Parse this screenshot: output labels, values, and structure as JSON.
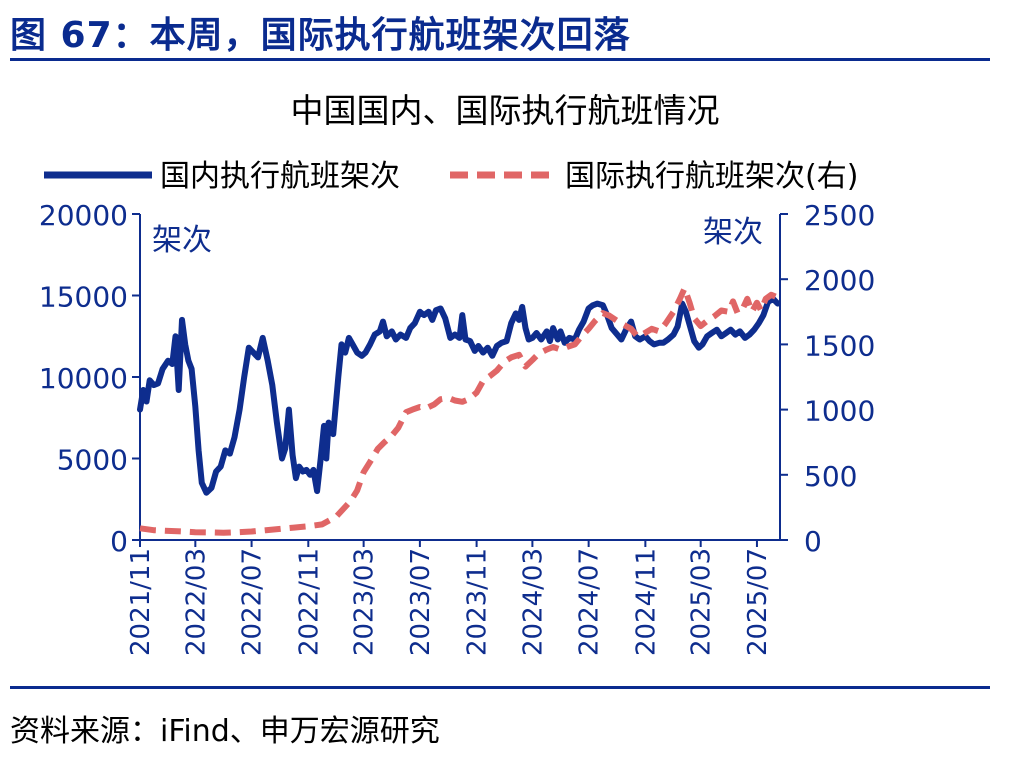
{
  "figure": {
    "title": "图 67：本周，国际执行航班架次回落",
    "source": "资料来源：iFind、申万宏源研究"
  },
  "colors": {
    "brand": "#0a2b8f",
    "domestic_line": "#0e2d8e",
    "international_line": "#e06666",
    "axis": "#0e2d8e"
  },
  "chart_data": {
    "type": "line",
    "title": "中国国内、国际执行航班情况",
    "xlabel": "",
    "ylabel": "架次",
    "y2label": "架次",
    "legend_position": "top",
    "grid": false,
    "x_ticks": [
      "2021/11",
      "2022/03",
      "2022/07",
      "2022/11",
      "2023/03",
      "2023/07",
      "2023/11",
      "2024/03",
      "2024/07",
      "2024/11",
      "2025/03",
      "2025/07"
    ],
    "x_range": [
      "2021-11-01",
      "2025-08-20"
    ],
    "y_left": {
      "min": 0,
      "max": 20000,
      "ticks": [
        0,
        5000,
        10000,
        15000,
        20000
      ]
    },
    "y_right": {
      "min": 0,
      "max": 2500,
      "ticks": [
        0,
        500,
        1000,
        1500,
        2000,
        2500
      ]
    },
    "series": [
      {
        "name": "国内执行航班架次",
        "axis": "left",
        "style": "solid",
        "points": [
          [
            "2021-11-01",
            8000
          ],
          [
            "2021-11-08",
            9200
          ],
          [
            "2021-11-15",
            8500
          ],
          [
            "2021-11-22",
            9800
          ],
          [
            "2021-12-01",
            9500
          ],
          [
            "2021-12-10",
            9600
          ],
          [
            "2021-12-20",
            10500
          ],
          [
            "2022-01-01",
            11000
          ],
          [
            "2022-01-10",
            10800
          ],
          [
            "2022-01-17",
            12500
          ],
          [
            "2022-01-24",
            9200
          ],
          [
            "2022-01-31",
            13500
          ],
          [
            "2022-02-07",
            12000
          ],
          [
            "2022-02-14",
            11000
          ],
          [
            "2022-02-21",
            10500
          ],
          [
            "2022-03-01",
            8200
          ],
          [
            "2022-03-08",
            5500
          ],
          [
            "2022-03-15",
            3500
          ],
          [
            "2022-03-25",
            2900
          ],
          [
            "2022-04-05",
            3200
          ],
          [
            "2022-04-15",
            4200
          ],
          [
            "2022-04-25",
            4500
          ],
          [
            "2022-05-05",
            5500
          ],
          [
            "2022-05-15",
            5300
          ],
          [
            "2022-05-25",
            6300
          ],
          [
            "2022-06-05",
            8000
          ],
          [
            "2022-06-15",
            10000
          ],
          [
            "2022-06-25",
            11800
          ],
          [
            "2022-07-05",
            11500
          ],
          [
            "2022-07-15",
            11200
          ],
          [
            "2022-07-25",
            12400
          ],
          [
            "2022-08-05",
            11000
          ],
          [
            "2022-08-15",
            9500
          ],
          [
            "2022-08-25",
            7200
          ],
          [
            "2022-09-05",
            5000
          ],
          [
            "2022-09-12",
            5600
          ],
          [
            "2022-09-20",
            8000
          ],
          [
            "2022-09-28",
            5200
          ],
          [
            "2022-10-05",
            3800
          ],
          [
            "2022-10-12",
            4500
          ],
          [
            "2022-10-20",
            4200
          ],
          [
            "2022-10-28",
            4300
          ],
          [
            "2022-11-05",
            4000
          ],
          [
            "2022-11-12",
            4300
          ],
          [
            "2022-11-20",
            3000
          ],
          [
            "2022-11-28",
            5000
          ],
          [
            "2022-12-05",
            7000
          ],
          [
            "2022-12-10",
            5000
          ],
          [
            "2022-12-15",
            7200
          ],
          [
            "2022-12-25",
            6500
          ],
          [
            "2023-01-05",
            10000
          ],
          [
            "2023-01-12",
            12000
          ],
          [
            "2023-01-20",
            11500
          ],
          [
            "2023-01-28",
            12400
          ],
          [
            "2023-02-05",
            12000
          ],
          [
            "2023-02-15",
            11500
          ],
          [
            "2023-02-25",
            11300
          ],
          [
            "2023-03-05",
            11500
          ],
          [
            "2023-03-15",
            12000
          ],
          [
            "2023-03-25",
            12600
          ],
          [
            "2023-04-05",
            12800
          ],
          [
            "2023-04-12",
            13400
          ],
          [
            "2023-04-20",
            12500
          ],
          [
            "2023-05-01",
            12800
          ],
          [
            "2023-05-10",
            12300
          ],
          [
            "2023-05-20",
            12600
          ],
          [
            "2023-06-01",
            12400
          ],
          [
            "2023-06-10",
            13000
          ],
          [
            "2023-06-20",
            13300
          ],
          [
            "2023-07-01",
            14000
          ],
          [
            "2023-07-10",
            13800
          ],
          [
            "2023-07-20",
            14000
          ],
          [
            "2023-07-28",
            13500
          ],
          [
            "2023-08-05",
            14100
          ],
          [
            "2023-08-15",
            14200
          ],
          [
            "2023-08-25",
            13600
          ],
          [
            "2023-09-05",
            12400
          ],
          [
            "2023-09-15",
            12600
          ],
          [
            "2023-09-25",
            12400
          ],
          [
            "2023-10-01",
            13800
          ],
          [
            "2023-10-08",
            12300
          ],
          [
            "2023-10-18",
            12200
          ],
          [
            "2023-10-28",
            11600
          ],
          [
            "2023-11-05",
            11900
          ],
          [
            "2023-11-15",
            11500
          ],
          [
            "2023-11-25",
            11800
          ],
          [
            "2023-12-05",
            11300
          ],
          [
            "2023-12-15",
            11900
          ],
          [
            "2023-12-25",
            12100
          ],
          [
            "2024-01-05",
            12200
          ],
          [
            "2024-01-15",
            13300
          ],
          [
            "2024-01-25",
            13900
          ],
          [
            "2024-02-01",
            13500
          ],
          [
            "2024-02-08",
            14300
          ],
          [
            "2024-02-15",
            13000
          ],
          [
            "2024-02-22",
            12300
          ],
          [
            "2024-03-01",
            12400
          ],
          [
            "2024-03-10",
            12700
          ],
          [
            "2024-03-20",
            12300
          ],
          [
            "2024-04-01",
            12800
          ],
          [
            "2024-04-08",
            12200
          ],
          [
            "2024-04-15",
            13000
          ],
          [
            "2024-04-25",
            12300
          ],
          [
            "2024-05-01",
            12800
          ],
          [
            "2024-05-10",
            12100
          ],
          [
            "2024-05-20",
            12400
          ],
          [
            "2024-06-01",
            12300
          ],
          [
            "2024-06-10",
            12900
          ],
          [
            "2024-06-20",
            13400
          ],
          [
            "2024-07-01",
            14200
          ],
          [
            "2024-07-10",
            14400
          ],
          [
            "2024-07-20",
            14500
          ],
          [
            "2024-08-01",
            14400
          ],
          [
            "2024-08-10",
            13800
          ],
          [
            "2024-08-20",
            13000
          ],
          [
            "2024-09-01",
            12600
          ],
          [
            "2024-09-10",
            12300
          ],
          [
            "2024-09-20",
            12900
          ],
          [
            "2024-10-01",
            13400
          ],
          [
            "2024-10-10",
            12500
          ],
          [
            "2024-10-20",
            12300
          ],
          [
            "2024-11-01",
            12500
          ],
          [
            "2024-11-10",
            12200
          ],
          [
            "2024-11-20",
            12000
          ],
          [
            "2024-12-01",
            12100
          ],
          [
            "2024-12-10",
            12100
          ],
          [
            "2024-12-20",
            12300
          ],
          [
            "2025-01-01",
            12600
          ],
          [
            "2025-01-10",
            13100
          ],
          [
            "2025-01-20",
            14500
          ],
          [
            "2025-01-28",
            14000
          ],
          [
            "2025-02-05",
            13200
          ],
          [
            "2025-02-15",
            12200
          ],
          [
            "2025-02-25",
            11800
          ],
          [
            "2025-03-05",
            12000
          ],
          [
            "2025-03-15",
            12500
          ],
          [
            "2025-03-25",
            12700
          ],
          [
            "2025-04-05",
            12900
          ],
          [
            "2025-04-15",
            12500
          ],
          [
            "2025-04-25",
            12700
          ],
          [
            "2025-05-05",
            12900
          ],
          [
            "2025-05-15",
            12600
          ],
          [
            "2025-05-25",
            12800
          ],
          [
            "2025-06-05",
            12400
          ],
          [
            "2025-06-15",
            12600
          ],
          [
            "2025-06-25",
            12900
          ],
          [
            "2025-07-05",
            13300
          ],
          [
            "2025-07-15",
            13800
          ],
          [
            "2025-07-25",
            14600
          ],
          [
            "2025-08-05",
            14800
          ],
          [
            "2025-08-15",
            14500
          ]
        ]
      },
      {
        "name": "国际执行航班架次(右)",
        "axis": "right",
        "style": "dashed",
        "points": [
          [
            "2021-11-01",
            90
          ],
          [
            "2021-12-01",
            75
          ],
          [
            "2022-01-01",
            70
          ],
          [
            "2022-02-01",
            65
          ],
          [
            "2022-03-01",
            60
          ],
          [
            "2022-04-01",
            58
          ],
          [
            "2022-05-01",
            55
          ],
          [
            "2022-06-01",
            60
          ],
          [
            "2022-07-01",
            65
          ],
          [
            "2022-08-01",
            75
          ],
          [
            "2022-09-01",
            85
          ],
          [
            "2022-10-01",
            95
          ],
          [
            "2022-11-01",
            105
          ],
          [
            "2022-12-01",
            120
          ],
          [
            "2023-01-01",
            180
          ],
          [
            "2023-02-01",
            300
          ],
          [
            "2023-02-15",
            380
          ],
          [
            "2023-03-01",
            520
          ],
          [
            "2023-03-15",
            600
          ],
          [
            "2023-04-01",
            700
          ],
          [
            "2023-04-15",
            750
          ],
          [
            "2023-05-01",
            800
          ],
          [
            "2023-05-15",
            860
          ],
          [
            "2023-06-01",
            980
          ],
          [
            "2023-06-15",
            1000
          ],
          [
            "2023-07-01",
            1020
          ],
          [
            "2023-07-15",
            1010
          ],
          [
            "2023-08-01",
            1040
          ],
          [
            "2023-08-15",
            1080
          ],
          [
            "2023-09-01",
            1090
          ],
          [
            "2023-09-15",
            1070
          ],
          [
            "2023-10-01",
            1060
          ],
          [
            "2023-10-15",
            1080
          ],
          [
            "2023-11-01",
            1130
          ],
          [
            "2023-11-15",
            1220
          ],
          [
            "2023-12-01",
            1260
          ],
          [
            "2023-12-15",
            1300
          ],
          [
            "2024-01-01",
            1370
          ],
          [
            "2024-01-15",
            1400
          ],
          [
            "2024-02-01",
            1420
          ],
          [
            "2024-02-15",
            1330
          ],
          [
            "2024-03-01",
            1380
          ],
          [
            "2024-03-15",
            1430
          ],
          [
            "2024-04-01",
            1460
          ],
          [
            "2024-04-15",
            1480
          ],
          [
            "2024-05-01",
            1460
          ],
          [
            "2024-05-15",
            1480
          ],
          [
            "2024-06-01",
            1500
          ],
          [
            "2024-06-15",
            1560
          ],
          [
            "2024-07-01",
            1620
          ],
          [
            "2024-07-15",
            1680
          ],
          [
            "2024-08-01",
            1740
          ],
          [
            "2024-08-15",
            1720
          ],
          [
            "2024-09-01",
            1680
          ],
          [
            "2024-09-15",
            1650
          ],
          [
            "2024-10-01",
            1620
          ],
          [
            "2024-10-15",
            1560
          ],
          [
            "2024-11-01",
            1590
          ],
          [
            "2024-11-15",
            1620
          ],
          [
            "2024-12-01",
            1600
          ],
          [
            "2024-12-15",
            1660
          ],
          [
            "2025-01-01",
            1750
          ],
          [
            "2025-01-15",
            1850
          ],
          [
            "2025-01-25",
            1930
          ],
          [
            "2025-02-05",
            1820
          ],
          [
            "2025-02-15",
            1700
          ],
          [
            "2025-03-01",
            1640
          ],
          [
            "2025-03-15",
            1680
          ],
          [
            "2025-04-01",
            1720
          ],
          [
            "2025-04-15",
            1760
          ],
          [
            "2025-05-01",
            1750
          ],
          [
            "2025-05-10",
            1830
          ],
          [
            "2025-05-20",
            1740
          ],
          [
            "2025-06-01",
            1780
          ],
          [
            "2025-06-10",
            1850
          ],
          [
            "2025-06-20",
            1750
          ],
          [
            "2025-07-01",
            1820
          ],
          [
            "2025-07-10",
            1760
          ],
          [
            "2025-07-20",
            1850
          ],
          [
            "2025-08-01",
            1880
          ],
          [
            "2025-08-15",
            1860
          ]
        ]
      }
    ]
  }
}
